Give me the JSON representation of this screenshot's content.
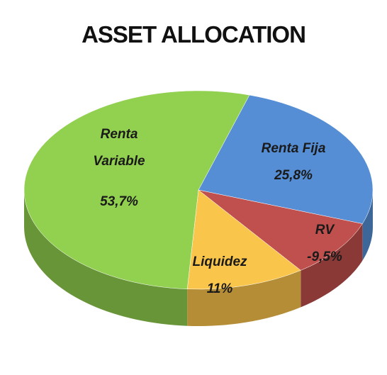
{
  "chart_data": {
    "type": "pie",
    "title": "ASSET ALLOCATION",
    "categories": [
      "Renta Fija",
      "RV",
      "Liquidez",
      "Renta Variable"
    ],
    "values": [
      25.8,
      -9.5,
      11,
      53.7
    ],
    "value_labels": [
      "25,8%",
      "-9,5%",
      "11%",
      "53,7%"
    ],
    "colors": [
      "#558ed5",
      "#c0504d",
      "#fac54b",
      "#92d050"
    ]
  }
}
